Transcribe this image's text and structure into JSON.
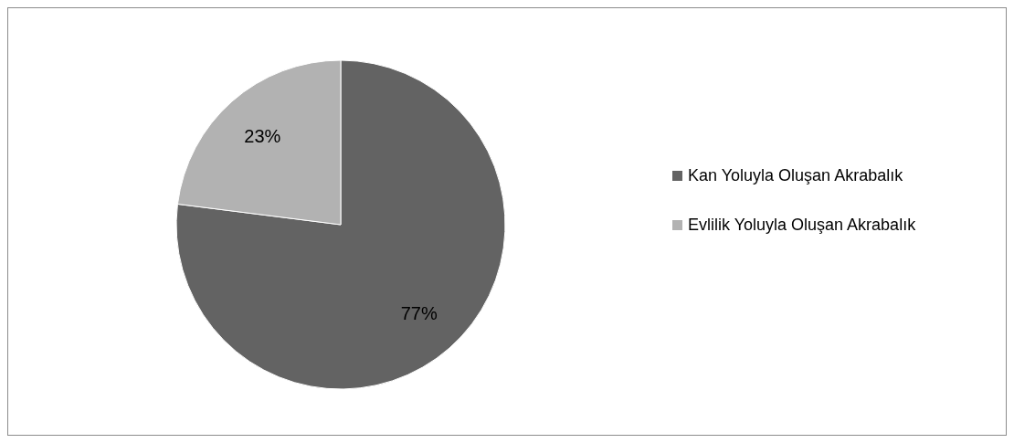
{
  "chart_data": {
    "type": "pie",
    "categories": [
      "Kan Yoluyla Oluşan Akrabalık",
      "Evlilik Yoluyla Oluşan Akrabalık"
    ],
    "values": [
      77,
      23
    ],
    "colors": [
      "#636363",
      "#b2b2b2"
    ],
    "value_labels": [
      "77%",
      "23%"
    ],
    "legend": "right"
  }
}
